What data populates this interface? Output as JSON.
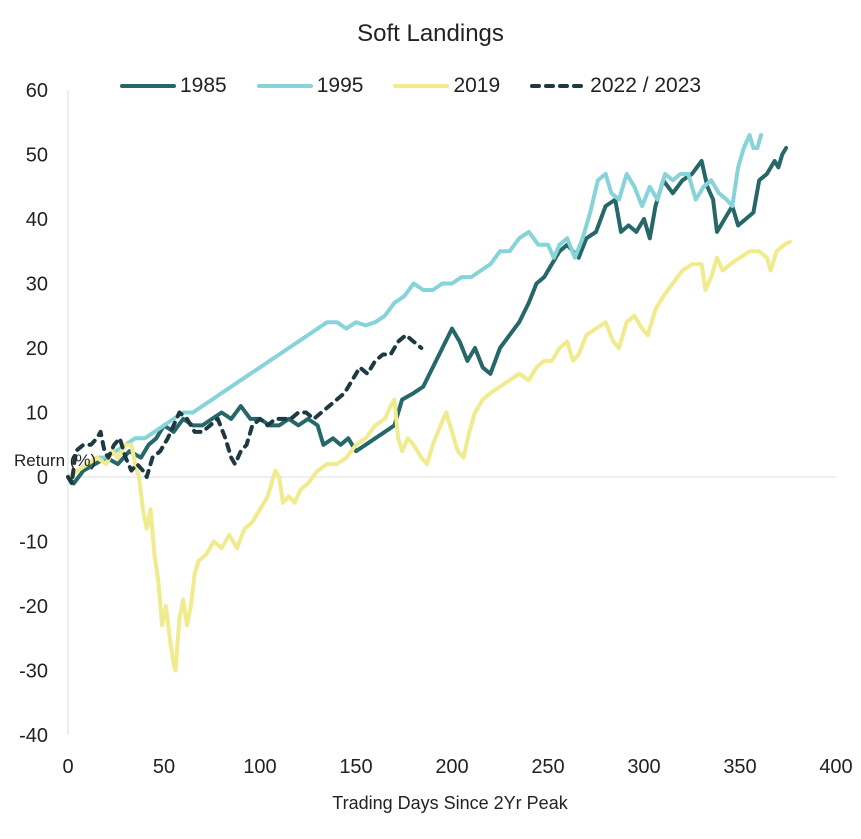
{
  "chart_data": {
    "type": "line",
    "title": "Soft Landings",
    "xlabel": "Trading Days Since 2Yr Peak",
    "ylabel": "Return (%)",
    "xlim": [
      0,
      400
    ],
    "ylim": [
      -40,
      60
    ],
    "xticks": [
      "0",
      "50",
      "100",
      "150",
      "200",
      "250",
      "300",
      "350",
      "400"
    ],
    "yticks": [
      "60",
      "50",
      "40",
      "30",
      "20",
      "10",
      "0",
      "-10",
      "-20",
      "-30",
      "-40"
    ],
    "legend_position": "top",
    "grid": false,
    "series": [
      {
        "name": "1985",
        "color": "#266769",
        "dashed": false,
        "points": [
          [
            0,
            0
          ],
          [
            3,
            -1
          ],
          [
            8,
            1
          ],
          [
            14,
            2
          ],
          [
            20,
            3
          ],
          [
            26,
            2
          ],
          [
            32,
            4
          ],
          [
            38,
            3
          ],
          [
            42,
            5
          ],
          [
            46,
            6
          ],
          [
            50,
            8
          ],
          [
            55,
            7
          ],
          [
            60,
            9
          ],
          [
            65,
            8
          ],
          [
            70,
            8
          ],
          [
            75,
            9
          ],
          [
            80,
            10
          ],
          [
            85,
            9
          ],
          [
            90,
            11
          ],
          [
            95,
            9
          ],
          [
            100,
            9
          ],
          [
            105,
            8
          ],
          [
            110,
            8
          ],
          [
            115,
            9
          ],
          [
            120,
            8
          ],
          [
            125,
            9
          ],
          [
            130,
            8
          ],
          [
            133,
            5
          ],
          [
            138,
            6
          ],
          [
            142,
            5
          ],
          [
            146,
            6
          ],
          [
            150,
            4
          ],
          [
            155,
            5
          ],
          [
            160,
            6
          ],
          [
            165,
            7
          ],
          [
            170,
            8
          ],
          [
            174,
            12
          ],
          [
            180,
            13
          ],
          [
            185,
            14
          ],
          [
            190,
            17
          ],
          [
            195,
            20
          ],
          [
            200,
            23
          ],
          [
            204,
            21
          ],
          [
            208,
            18
          ],
          [
            212,
            20
          ],
          [
            216,
            17
          ],
          [
            220,
            16
          ],
          [
            225,
            20
          ],
          [
            230,
            22
          ],
          [
            235,
            24
          ],
          [
            240,
            27
          ],
          [
            244,
            30
          ],
          [
            248,
            31
          ],
          [
            252,
            33
          ],
          [
            256,
            35
          ],
          [
            260,
            36
          ],
          [
            263,
            35
          ],
          [
            266,
            34
          ],
          [
            270,
            37
          ],
          [
            275,
            38
          ],
          [
            280,
            42
          ],
          [
            285,
            43
          ],
          [
            288,
            38
          ],
          [
            292,
            39
          ],
          [
            296,
            38
          ],
          [
            300,
            40
          ],
          [
            303,
            37
          ],
          [
            306,
            42
          ],
          [
            310,
            46
          ],
          [
            315,
            44
          ],
          [
            320,
            46
          ],
          [
            325,
            47
          ],
          [
            330,
            49
          ],
          [
            333,
            45
          ],
          [
            336,
            43
          ],
          [
            338,
            38
          ],
          [
            342,
            40
          ],
          [
            346,
            42
          ],
          [
            349,
            39
          ],
          [
            353,
            40
          ],
          [
            357,
            41
          ],
          [
            360,
            46
          ],
          [
            364,
            47
          ],
          [
            368,
            49
          ],
          [
            370,
            48
          ],
          [
            372,
            50
          ],
          [
            374,
            51
          ]
        ]
      },
      {
        "name": "1995",
        "color": "#86d3da",
        "dashed": false,
        "points": [
          [
            0,
            0
          ],
          [
            5,
            1
          ],
          [
            10,
            2
          ],
          [
            15,
            3
          ],
          [
            20,
            3
          ],
          [
            25,
            4
          ],
          [
            30,
            5
          ],
          [
            35,
            6
          ],
          [
            40,
            6
          ],
          [
            45,
            7
          ],
          [
            50,
            8
          ],
          [
            55,
            9
          ],
          [
            60,
            10
          ],
          [
            65,
            10
          ],
          [
            70,
            11
          ],
          [
            75,
            12
          ],
          [
            80,
            13
          ],
          [
            85,
            14
          ],
          [
            90,
            15
          ],
          [
            95,
            16
          ],
          [
            100,
            17
          ],
          [
            105,
            18
          ],
          [
            110,
            19
          ],
          [
            115,
            20
          ],
          [
            120,
            21
          ],
          [
            125,
            22
          ],
          [
            130,
            23
          ],
          [
            135,
            24
          ],
          [
            140,
            24
          ],
          [
            145,
            23
          ],
          [
            150,
            24
          ],
          [
            155,
            23.5
          ],
          [
            160,
            24
          ],
          [
            165,
            25
          ],
          [
            170,
            27
          ],
          [
            175,
            28
          ],
          [
            180,
            30
          ],
          [
            185,
            29
          ],
          [
            190,
            29
          ],
          [
            195,
            30
          ],
          [
            200,
            30
          ],
          [
            205,
            31
          ],
          [
            210,
            31
          ],
          [
            215,
            32
          ],
          [
            220,
            33
          ],
          [
            225,
            35
          ],
          [
            230,
            35
          ],
          [
            235,
            37
          ],
          [
            240,
            38
          ],
          [
            245,
            36
          ],
          [
            250,
            36
          ],
          [
            253,
            34
          ],
          [
            256,
            36
          ],
          [
            260,
            37
          ],
          [
            264,
            34
          ],
          [
            268,
            37
          ],
          [
            272,
            41
          ],
          [
            276,
            46
          ],
          [
            280,
            47
          ],
          [
            283,
            44
          ],
          [
            287,
            43
          ],
          [
            291,
            47
          ],
          [
            295,
            45
          ],
          [
            299,
            42
          ],
          [
            303,
            45
          ],
          [
            307,
            43
          ],
          [
            311,
            47
          ],
          [
            315,
            46
          ],
          [
            319,
            47
          ],
          [
            323,
            47
          ],
          [
            327,
            43
          ],
          [
            331,
            45
          ],
          [
            335,
            46
          ],
          [
            339,
            44
          ],
          [
            343,
            43
          ],
          [
            346,
            42
          ],
          [
            349,
            48
          ],
          [
            352,
            51
          ],
          [
            355,
            53
          ],
          [
            357,
            51
          ],
          [
            359,
            51
          ],
          [
            361,
            53
          ]
        ]
      },
      {
        "name": "2019",
        "color": "#f0eb8c",
        "dashed": false,
        "points": [
          [
            0,
            0
          ],
          [
            5,
            1
          ],
          [
            10,
            2
          ],
          [
            15,
            3
          ],
          [
            20,
            2
          ],
          [
            23,
            4
          ],
          [
            26,
            3
          ],
          [
            30,
            5
          ],
          [
            33,
            5
          ],
          [
            35,
            2
          ],
          [
            37,
            0
          ],
          [
            39,
            -5
          ],
          [
            41,
            -8
          ],
          [
            43,
            -5
          ],
          [
            45,
            -12
          ],
          [
            47,
            -16
          ],
          [
            49,
            -23
          ],
          [
            51,
            -20
          ],
          [
            53,
            -25
          ],
          [
            55,
            -29
          ],
          [
            56,
            -30
          ],
          [
            58,
            -22
          ],
          [
            60,
            -19
          ],
          [
            62,
            -23
          ],
          [
            64,
            -20
          ],
          [
            66,
            -15
          ],
          [
            68,
            -13
          ],
          [
            72,
            -12
          ],
          [
            76,
            -10
          ],
          [
            80,
            -11
          ],
          [
            84,
            -9
          ],
          [
            88,
            -11
          ],
          [
            92,
            -8
          ],
          [
            96,
            -7
          ],
          [
            100,
            -5
          ],
          [
            104,
            -3
          ],
          [
            108,
            1
          ],
          [
            110,
            0
          ],
          [
            112,
            -4
          ],
          [
            115,
            -3
          ],
          [
            118,
            -4
          ],
          [
            121,
            -2
          ],
          [
            125,
            -1
          ],
          [
            130,
            1
          ],
          [
            135,
            2
          ],
          [
            140,
            2
          ],
          [
            145,
            3
          ],
          [
            150,
            5
          ],
          [
            155,
            6
          ],
          [
            160,
            8
          ],
          [
            165,
            9
          ],
          [
            168,
            11
          ],
          [
            170,
            12
          ],
          [
            172,
            6
          ],
          [
            174,
            4
          ],
          [
            177,
            6
          ],
          [
            180,
            5
          ],
          [
            184,
            3
          ],
          [
            187,
            2
          ],
          [
            190,
            5
          ],
          [
            194,
            8
          ],
          [
            197,
            10
          ],
          [
            200,
            7
          ],
          [
            203,
            4
          ],
          [
            206,
            3
          ],
          [
            209,
            7
          ],
          [
            212,
            10
          ],
          [
            216,
            12
          ],
          [
            220,
            13
          ],
          [
            225,
            14
          ],
          [
            230,
            15
          ],
          [
            235,
            16
          ],
          [
            240,
            15
          ],
          [
            244,
            17
          ],
          [
            248,
            18
          ],
          [
            252,
            18
          ],
          [
            256,
            20
          ],
          [
            260,
            21
          ],
          [
            263,
            18
          ],
          [
            266,
            19
          ],
          [
            270,
            22
          ],
          [
            275,
            23
          ],
          [
            280,
            24
          ],
          [
            284,
            21
          ],
          [
            287,
            20
          ],
          [
            291,
            24
          ],
          [
            295,
            25
          ],
          [
            299,
            23
          ],
          [
            302,
            22
          ],
          [
            306,
            26
          ],
          [
            310,
            28
          ],
          [
            315,
            30
          ],
          [
            320,
            32
          ],
          [
            325,
            33
          ],
          [
            330,
            33
          ],
          [
            332,
            29
          ],
          [
            335,
            31
          ],
          [
            338,
            34
          ],
          [
            341,
            32
          ],
          [
            345,
            33
          ],
          [
            350,
            34
          ],
          [
            355,
            35
          ],
          [
            360,
            35
          ],
          [
            364,
            34
          ],
          [
            366,
            32
          ],
          [
            369,
            35
          ],
          [
            373,
            36
          ],
          [
            376,
            36.5
          ]
        ]
      },
      {
        "name": "2022 / 2023",
        "color": "#1d3a42",
        "dashed": true,
        "points": [
          [
            0,
            0
          ],
          [
            2,
            -1
          ],
          [
            4,
            4
          ],
          [
            8,
            5
          ],
          [
            12,
            5
          ],
          [
            15,
            6
          ],
          [
            17,
            7
          ],
          [
            19,
            4
          ],
          [
            21,
            3
          ],
          [
            24,
            5
          ],
          [
            27,
            6
          ],
          [
            30,
            3
          ],
          [
            33,
            1
          ],
          [
            36,
            2
          ],
          [
            39,
            1
          ],
          [
            41,
            0
          ],
          [
            44,
            3
          ],
          [
            48,
            4
          ],
          [
            52,
            6
          ],
          [
            55,
            8
          ],
          [
            58,
            10
          ],
          [
            62,
            9
          ],
          [
            66,
            7
          ],
          [
            70,
            7
          ],
          [
            74,
            8
          ],
          [
            78,
            9
          ],
          [
            82,
            6
          ],
          [
            85,
            3
          ],
          [
            87,
            2
          ],
          [
            90,
            4
          ],
          [
            93,
            5
          ],
          [
            96,
            8
          ],
          [
            100,
            9
          ],
          [
            104,
            8
          ],
          [
            108,
            9
          ],
          [
            112,
            9
          ],
          [
            116,
            9
          ],
          [
            120,
            10
          ],
          [
            124,
            10
          ],
          [
            128,
            9
          ],
          [
            132,
            10
          ],
          [
            136,
            11
          ],
          [
            140,
            12
          ],
          [
            144,
            13
          ],
          [
            148,
            15
          ],
          [
            152,
            17
          ],
          [
            156,
            16
          ],
          [
            160,
            18
          ],
          [
            164,
            19
          ],
          [
            168,
            19
          ],
          [
            172,
            21
          ],
          [
            176,
            22
          ],
          [
            180,
            21
          ],
          [
            184,
            20
          ]
        ]
      }
    ]
  }
}
